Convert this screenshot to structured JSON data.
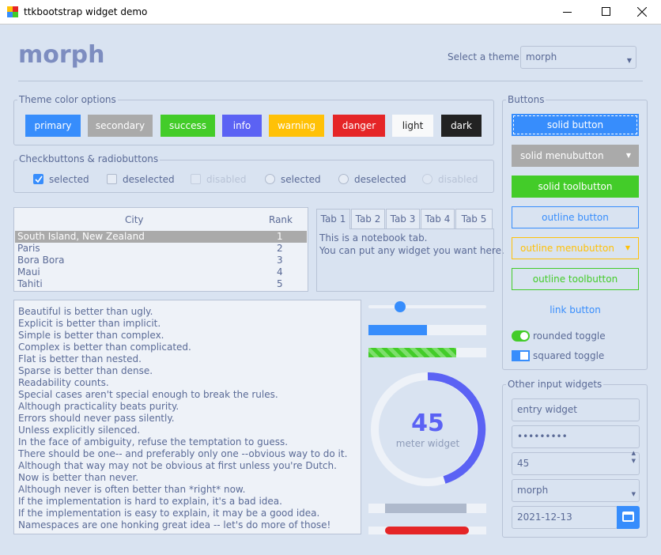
{
  "window": {
    "title": "ttkbootstrap widget demo"
  },
  "header": {
    "title": "morph",
    "theme_label": "Select a theme:",
    "theme_value": "morph"
  },
  "theme_colors": {
    "label": "Theme color options",
    "buttons": [
      "primary",
      "secondary",
      "success",
      "info",
      "warning",
      "danger",
      "light",
      "dark"
    ]
  },
  "checks": {
    "label": "Checkbuttons & radiobuttons",
    "items": [
      "selected",
      "deselected",
      "disabled",
      "selected",
      "deselected",
      "disabled"
    ]
  },
  "table": {
    "headers": [
      "City",
      "Rank"
    ],
    "rows": [
      [
        "South Island, New Zealand",
        1
      ],
      [
        "Paris",
        2
      ],
      [
        "Bora Bora",
        3
      ],
      [
        "Maui",
        4
      ],
      [
        "Tahiti",
        5
      ]
    ]
  },
  "notebook": {
    "tabs": [
      "Tab 1",
      "Tab 2",
      "Tab 3",
      "Tab 4",
      "Tab 5"
    ],
    "text": [
      "This is a notebook tab.",
      "You can put any widget you want here."
    ]
  },
  "zen": [
    "Beautiful is better than ugly.",
    "Explicit is better than implicit.",
    "Simple is better than complex.",
    "Complex is better than complicated.",
    "Flat is better than nested.",
    "Sparse is better than dense.",
    "Readability counts.",
    "Special cases aren't special enough to break the rules.",
    "Although practicality beats purity.",
    "Errors should never pass silently.",
    "Unless explicitly silenced.",
    "In the face of ambiguity, refuse the temptation to guess.",
    "There should be one-- and preferably only one --obvious way to do it.",
    "Although that way may not be obvious at first unless you're Dutch.",
    "Now is better than never.",
    "Although never is often better than *right* now.",
    "If the implementation is hard to explain, it's a bad idea.",
    "If the implementation is easy to explain, it may be a good idea.",
    "Namespaces are one honking great idea -- let's do more of those!"
  ],
  "meter": {
    "value": 45,
    "label": "meter widget"
  },
  "buttons": {
    "label": "Buttons",
    "items": [
      "solid button",
      "solid menubutton",
      "solid toolbutton",
      "outline button",
      "outline menubutton",
      "outline toolbutton",
      "link button"
    ],
    "toggles": [
      "rounded toggle",
      "squared toggle"
    ]
  },
  "inputs": {
    "label": "Other input widgets",
    "entry": "entry widget",
    "password": "•••••••••",
    "spinbox": 45,
    "combobox": "morph",
    "date": "2021-12-13"
  }
}
